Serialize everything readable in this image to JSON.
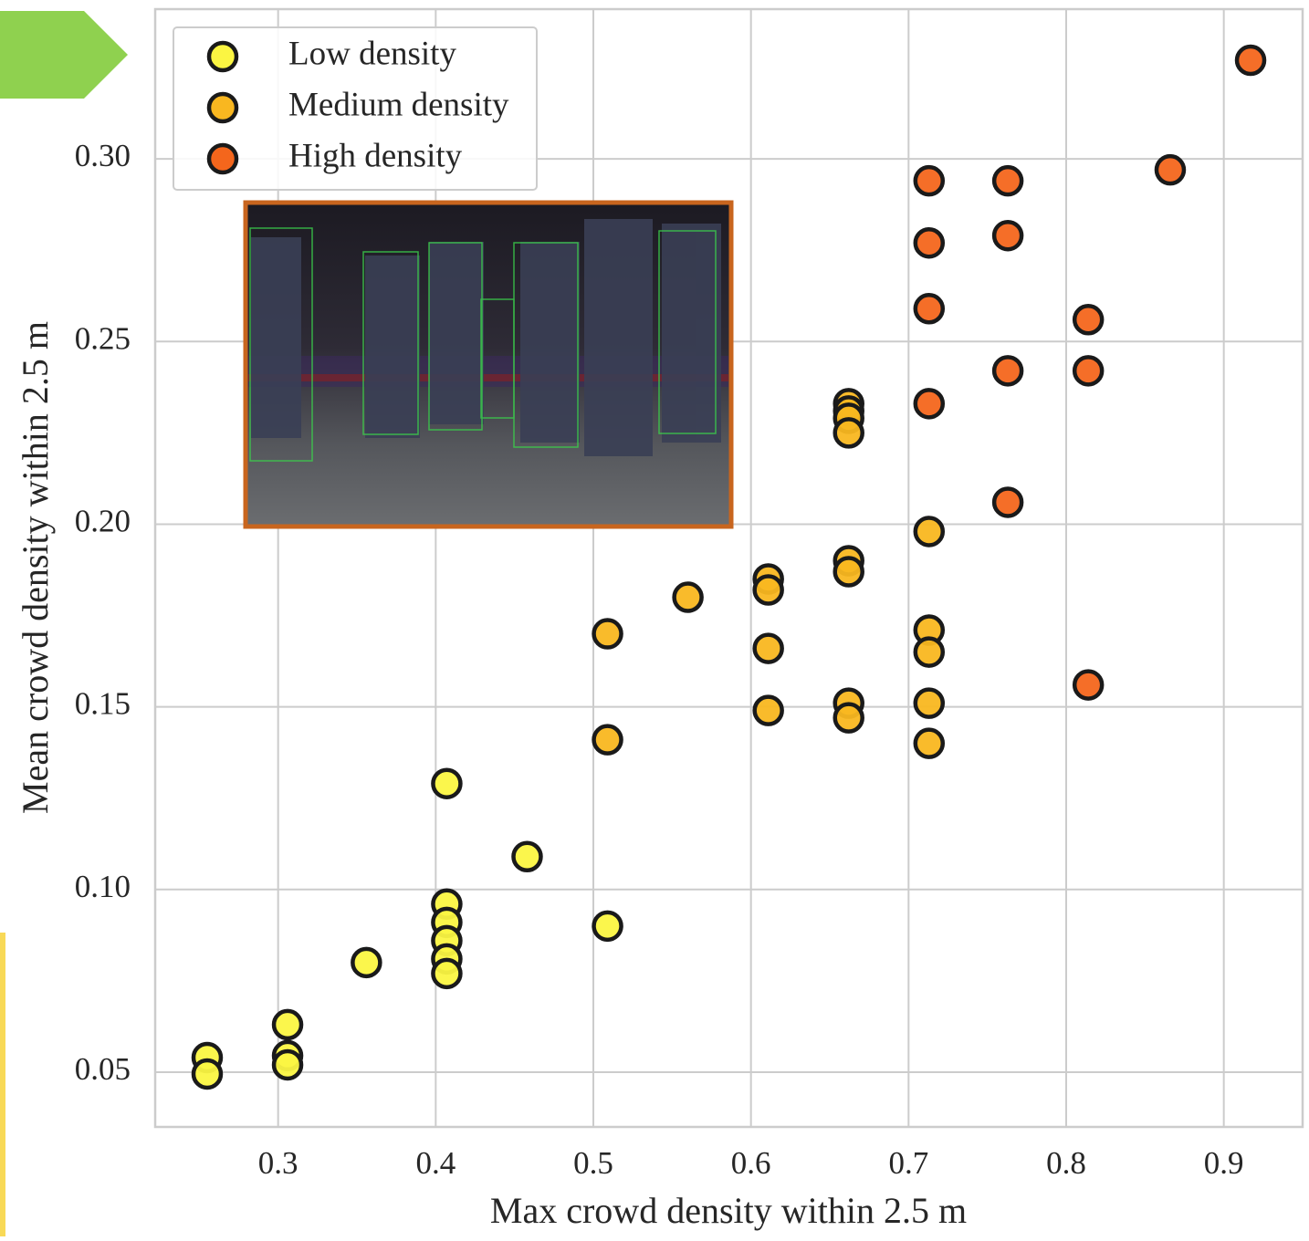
{
  "chart_data": {
    "type": "scatter",
    "xlabel": "Max crowd density within 2.5 m",
    "ylabel": "Mean crowd density within 2.5 m",
    "xlim": [
      0.222,
      0.95
    ],
    "ylim": [
      0.035,
      0.341
    ],
    "xticks": [
      0.3,
      0.4,
      0.5,
      0.6,
      0.7,
      0.8,
      0.9
    ],
    "yticks": [
      0.05,
      {
        "value": 0.1,
        "label": "0.10"
      },
      0.15,
      {
        "value": 0.2,
        "label": "0.20"
      },
      0.25,
      {
        "value": 0.3,
        "label": "0.30"
      }
    ],
    "grid": true,
    "legend": "upper left",
    "series": [
      {
        "name": "Low density",
        "color": "#fbf542",
        "x": [
          0.255,
          0.255,
          0.306,
          0.306,
          0.306,
          0.356,
          0.407,
          0.407,
          0.407,
          0.407,
          0.407,
          0.407,
          0.458,
          0.509
        ],
        "values": [
          0.054,
          0.0495,
          0.063,
          0.0545,
          0.052,
          0.08,
          0.129,
          0.096,
          0.091,
          0.086,
          0.081,
          0.077,
          0.109,
          0.09
        ]
      },
      {
        "name": "Medium density",
        "color": "#f9b720",
        "x": [
          0.509,
          0.509,
          0.56,
          0.611,
          0.611,
          0.611,
          0.611,
          0.662,
          0.662,
          0.662,
          0.662,
          0.662,
          0.662,
          0.662,
          0.662,
          0.713,
          0.713,
          0.713,
          0.713,
          0.713
        ],
        "values": [
          0.17,
          0.141,
          0.18,
          0.185,
          0.182,
          0.166,
          0.149,
          0.233,
          0.231,
          0.229,
          0.225,
          0.19,
          0.187,
          0.151,
          0.147,
          0.198,
          0.171,
          0.165,
          0.151,
          0.14
        ]
      },
      {
        "name": "High density",
        "color": "#f4661c",
        "x": [
          0.713,
          0.713,
          0.713,
          0.713,
          0.763,
          0.763,
          0.763,
          0.763,
          0.814,
          0.814,
          0.814,
          0.866,
          0.917
        ],
        "values": [
          0.294,
          0.277,
          0.259,
          0.233,
          0.294,
          0.279,
          0.242,
          0.206,
          0.256,
          0.242,
          0.156,
          0.297,
          0.327
        ]
      }
    ]
  }
}
